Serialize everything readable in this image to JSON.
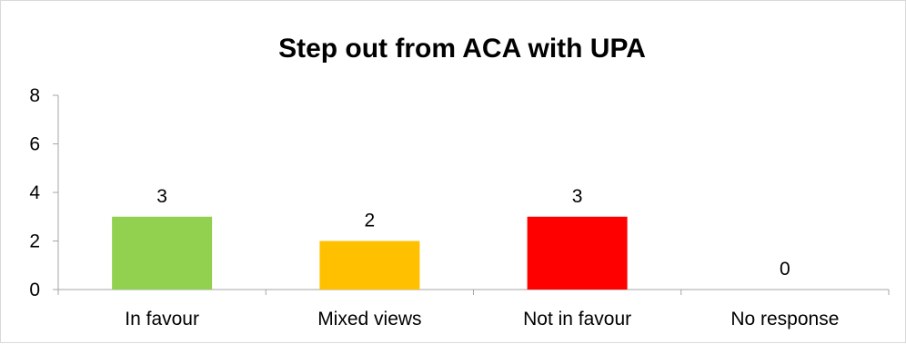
{
  "chart_data": {
    "type": "bar",
    "title": "Step out from ACA with UPA",
    "categories": [
      "In favour",
      "Mixed views",
      "Not in favour",
      "No response"
    ],
    "values": [
      3,
      2,
      3,
      0
    ],
    "colors": [
      "#92d050",
      "#ffc000",
      "#ff0000",
      "#a6a6a6"
    ],
    "ylim": [
      0,
      8
    ],
    "yticks": [
      0,
      2,
      4,
      6,
      8
    ],
    "grid": false,
    "legend": "none"
  }
}
